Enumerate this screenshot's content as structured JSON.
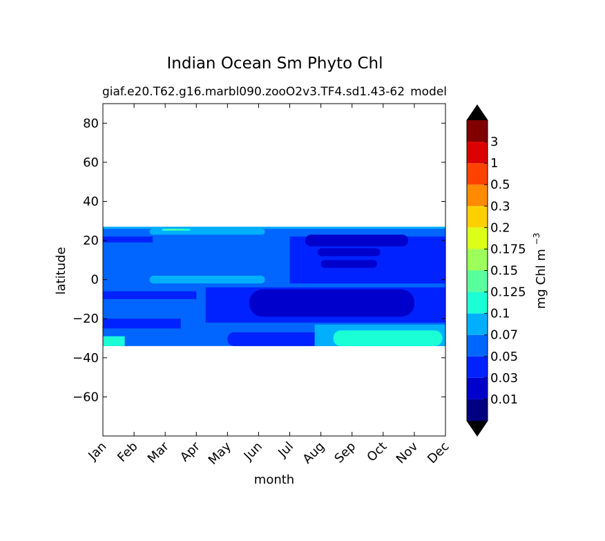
{
  "chart_data": {
    "type": "heatmap",
    "subtype": "filled-contour",
    "title": "Indian Ocean Sm Phyto Chl",
    "subtitle_left": "giaf.e20.T62.g16.marbl090.zooO2v3.TF4.sd1.43-62",
    "subtitle_right": "model",
    "xlabel": "month",
    "ylabel": "latitude",
    "x_categories": [
      "Jan",
      "Feb",
      "Mar",
      "Apr",
      "May",
      "Jun",
      "Jul",
      "Aug",
      "Sep",
      "Oct",
      "Nov",
      "Dec"
    ],
    "xlim": [
      0,
      11
    ],
    "ylim": [
      -80,
      90
    ],
    "yticks": [
      80,
      60,
      40,
      20,
      0,
      -20,
      -40,
      -60
    ],
    "ytick_labels": [
      "80",
      "60",
      "40",
      "20",
      "0",
      "−20",
      "−40",
      "−60"
    ],
    "data_lat_range": [
      -34,
      27
    ],
    "colorbar": {
      "label_main": "mg Chl m",
      "label_sup": "−3",
      "extend": "both",
      "tick_labels": [
        "0.01",
        "0.03",
        "0.05",
        "0.07",
        "0.1",
        "0.125",
        "0.15",
        "0.175",
        "0.2",
        "0.3",
        "0.5",
        "1",
        "3"
      ],
      "colors": [
        "#000080",
        "#0000cd",
        "#0022ff",
        "#0066ff",
        "#00b0ff",
        "#1affd5",
        "#58ff9d",
        "#9cff5a",
        "#dcff1a",
        "#ffd000",
        "#ff8a00",
        "#ff4200",
        "#dd0000",
        "#800000"
      ],
      "under_color": "#000000",
      "over_color": "#000000"
    },
    "regions": [
      {
        "level": 3,
        "x": [
          0,
          11
        ],
        "lat": [
          -34,
          27
        ],
        "note": "background 0.05-0.07"
      },
      {
        "level": 4,
        "x": [
          0,
          11
        ],
        "lat": [
          26,
          27
        ],
        "note": "northern edge band"
      },
      {
        "level": 4,
        "x": [
          1.5,
          5.2
        ],
        "lat": [
          23,
          26
        ],
        "note": "Feb-Jun north"
      },
      {
        "level": 5,
        "x": [
          1.9,
          2.8
        ],
        "lat": [
          25,
          26
        ]
      },
      {
        "level": 6,
        "x": [
          2.0,
          2.6
        ],
        "lat": [
          25.3,
          25.9
        ]
      },
      {
        "level": 2,
        "x": [
          0,
          1.6
        ],
        "lat": [
          19,
          22
        ]
      },
      {
        "level": 2,
        "x": [
          6.0,
          11
        ],
        "lat": [
          -2,
          22
        ]
      },
      {
        "level": 1,
        "x": [
          6.5,
          9.8
        ],
        "lat": [
          17,
          23
        ]
      },
      {
        "level": 1,
        "x": [
          6.9,
          8.9
        ],
        "lat": [
          12,
          16
        ]
      },
      {
        "level": 1,
        "x": [
          7.0,
          8.8
        ],
        "lat": [
          6,
          10
        ]
      },
      {
        "level": 4,
        "x": [
          1.5,
          5.2
        ],
        "lat": [
          -2,
          2
        ],
        "note": "equatorial band"
      },
      {
        "level": 2,
        "x": [
          0,
          3
        ],
        "lat": [
          -10,
          -6
        ]
      },
      {
        "level": 2,
        "x": [
          3.3,
          11
        ],
        "lat": [
          -22,
          -4
        ]
      },
      {
        "level": 1,
        "x": [
          4.7,
          10.0
        ],
        "lat": [
          -19,
          -5
        ]
      },
      {
        "level": 2,
        "x": [
          0,
          2.5
        ],
        "lat": [
          -25,
          -20
        ]
      },
      {
        "level": 2,
        "x": [
          4.0,
          7.2
        ],
        "lat": [
          -34,
          -27
        ]
      },
      {
        "level": 4,
        "x": [
          6.8,
          11
        ],
        "lat": [
          -34,
          -23
        ]
      },
      {
        "level": 5,
        "x": [
          7.4,
          10.9
        ],
        "lat": [
          -34,
          -26
        ]
      },
      {
        "level": 5,
        "x": [
          0,
          0.7
        ],
        "lat": [
          -34,
          -29
        ]
      }
    ]
  }
}
